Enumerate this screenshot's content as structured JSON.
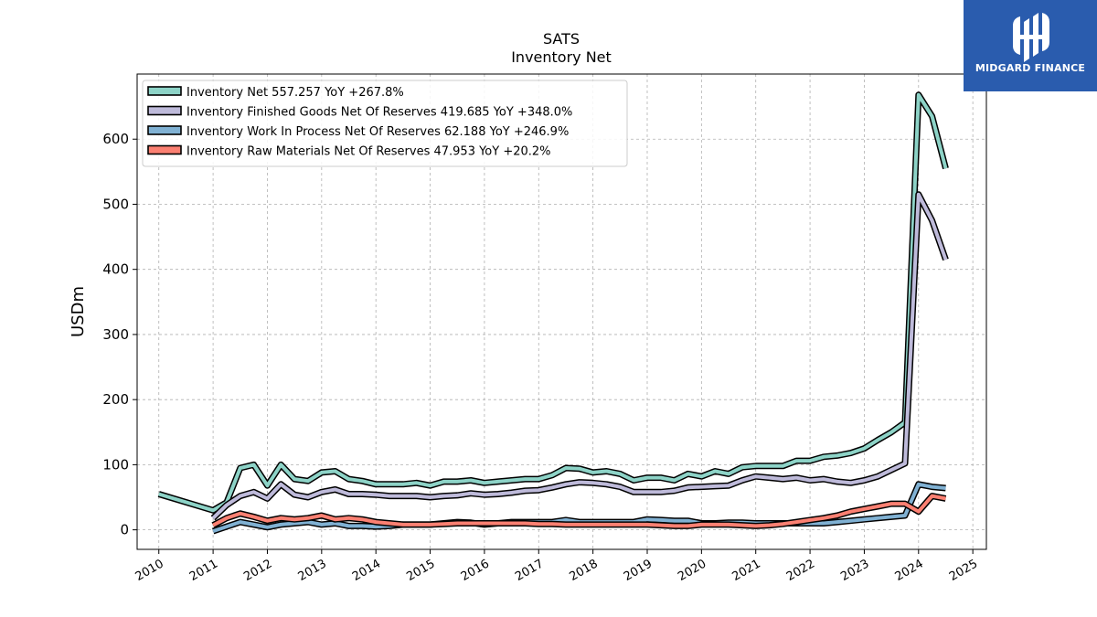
{
  "chart_data": {
    "type": "line",
    "title": "SATS",
    "subtitle": "Inventory Net",
    "xlabel": "",
    "ylabel": "USDm",
    "xlim": [
      2009.6,
      2025.25
    ],
    "ylim": [
      -30,
      700
    ],
    "yticks": [
      0,
      100,
      200,
      300,
      400,
      500,
      600
    ],
    "xticks": [
      2010,
      2011,
      2012,
      2013,
      2014,
      2015,
      2016,
      2017,
      2018,
      2019,
      2020,
      2021,
      2022,
      2023,
      2024,
      2025
    ],
    "grid": true,
    "legend_position": "top-left",
    "series": [
      {
        "name": "Inventory Net  557.257 YoY +267.8%",
        "color": "#8dd3c7",
        "x": [
          2010.0,
          2011.0,
          2011.25,
          2011.5,
          2011.75,
          2012.0,
          2012.25,
          2012.5,
          2012.75,
          2013.0,
          2013.25,
          2013.5,
          2013.75,
          2014.0,
          2014.25,
          2014.5,
          2014.75,
          2015.0,
          2015.25,
          2015.5,
          2015.75,
          2016.0,
          2016.25,
          2016.5,
          2016.75,
          2017.0,
          2017.25,
          2017.5,
          2017.75,
          2018.0,
          2018.25,
          2018.5,
          2018.75,
          2019.0,
          2019.25,
          2019.5,
          2019.75,
          2020.0,
          2020.25,
          2020.5,
          2020.75,
          2021.0,
          2021.25,
          2021.5,
          2021.75,
          2022.0,
          2022.25,
          2022.5,
          2022.75,
          2023.0,
          2023.25,
          2023.5,
          2023.75,
          2024.0,
          2024.25,
          2024.5
        ],
        "values": [
          55,
          30,
          42,
          95,
          100,
          68,
          100,
          78,
          75,
          88,
          90,
          78,
          75,
          70,
          70,
          70,
          72,
          68,
          74,
          74,
          76,
          72,
          74,
          76,
          78,
          78,
          84,
          95,
          94,
          88,
          90,
          86,
          76,
          80,
          80,
          76,
          86,
          82,
          90,
          86,
          96,
          98,
          98,
          98,
          106,
          106,
          112,
          114,
          118,
          125,
          138,
          150,
          165,
          668,
          635,
          555
        ]
      },
      {
        "name": "Inventory Finished Goods Net Of Reserves  419.685 YoY +348.0%",
        "color": "#bebada",
        "x": [
          2011.0,
          2011.25,
          2011.5,
          2011.75,
          2012.0,
          2012.25,
          2012.5,
          2012.75,
          2013.0,
          2013.25,
          2013.5,
          2013.75,
          2014.0,
          2014.25,
          2014.5,
          2014.75,
          2015.0,
          2015.25,
          2015.5,
          2015.75,
          2016.0,
          2016.25,
          2016.5,
          2016.75,
          2017.0,
          2017.25,
          2017.5,
          2017.75,
          2018.0,
          2018.25,
          2018.5,
          2018.75,
          2019.0,
          2019.25,
          2019.5,
          2019.75,
          2020.0,
          2020.25,
          2020.5,
          2020.75,
          2021.0,
          2021.25,
          2021.5,
          2021.75,
          2022.0,
          2022.25,
          2022.5,
          2022.75,
          2023.0,
          2023.25,
          2023.5,
          2023.75,
          2024.0,
          2024.25,
          2024.5
        ],
        "values": [
          18,
          38,
          52,
          58,
          48,
          70,
          54,
          50,
          58,
          62,
          55,
          55,
          54,
          52,
          52,
          52,
          50,
          52,
          53,
          56,
          54,
          55,
          57,
          60,
          61,
          65,
          70,
          73,
          72,
          70,
          66,
          58,
          58,
          58,
          60,
          65,
          66,
          67,
          68,
          76,
          82,
          80,
          78,
          80,
          76,
          78,
          74,
          72,
          76,
          82,
          92,
          102,
          515,
          475,
          415
        ]
      },
      {
        "name": "Inventory Work In Process Net Of Reserves  62.188 YoY +246.9%",
        "color": "#80b1d3",
        "x": [
          2011.0,
          2011.25,
          2011.5,
          2011.75,
          2012.0,
          2012.25,
          2012.5,
          2012.75,
          2013.0,
          2013.25,
          2013.5,
          2013.75,
          2014.0,
          2014.25,
          2014.5,
          2014.75,
          2015.0,
          2015.25,
          2015.5,
          2015.75,
          2016.0,
          2016.25,
          2016.5,
          2016.75,
          2017.0,
          2017.25,
          2017.5,
          2017.75,
          2018.0,
          2018.25,
          2018.5,
          2018.75,
          2019.0,
          2019.25,
          2019.5,
          2019.75,
          2020.0,
          2020.25,
          2020.5,
          2020.75,
          2021.0,
          2021.25,
          2021.5,
          2021.75,
          2022.0,
          2022.25,
          2022.5,
          2022.75,
          2023.0,
          2023.25,
          2023.5,
          2023.75,
          2024.0,
          2024.25,
          2024.5
        ],
        "values": [
          -2,
          5,
          12,
          8,
          4,
          8,
          10,
          12,
          8,
          10,
          6,
          6,
          5,
          6,
          8,
          8,
          8,
          10,
          12,
          11,
          8,
          10,
          12,
          12,
          12,
          12,
          15,
          12,
          12,
          12,
          12,
          12,
          16,
          15,
          14,
          14,
          10,
          10,
          11,
          11,
          10,
          10,
          10,
          10,
          10,
          10,
          12,
          14,
          16,
          18,
          20,
          22,
          70,
          66,
          64
        ]
      },
      {
        "name": "Inventory Raw Materials Net Of Reserves  47.953 YoY +20.2%",
        "color": "#fb8072",
        "x": [
          2011.0,
          2011.25,
          2011.5,
          2011.75,
          2012.0,
          2012.25,
          2012.5,
          2012.75,
          2013.0,
          2013.25,
          2013.5,
          2013.75,
          2014.0,
          2014.25,
          2014.5,
          2014.75,
          2015.0,
          2015.25,
          2015.5,
          2015.75,
          2016.0,
          2016.25,
          2016.5,
          2016.75,
          2017.0,
          2017.25,
          2017.5,
          2017.75,
          2018.0,
          2018.25,
          2018.5,
          2018.75,
          2019.0,
          2019.25,
          2019.5,
          2019.75,
          2020.0,
          2020.25,
          2020.5,
          2020.75,
          2021.0,
          2021.25,
          2021.5,
          2021.75,
          2022.0,
          2022.25,
          2022.5,
          2022.75,
          2023.0,
          2023.25,
          2023.5,
          2023.75,
          2024.0,
          2024.25,
          2024.5
        ],
        "values": [
          7,
          18,
          25,
          20,
          14,
          18,
          16,
          18,
          22,
          16,
          18,
          16,
          12,
          10,
          8,
          8,
          8,
          9,
          10,
          10,
          10,
          10,
          10,
          10,
          9,
          9,
          8,
          8,
          8,
          8,
          8,
          8,
          8,
          7,
          6,
          6,
          8,
          8,
          8,
          7,
          6,
          7,
          9,
          12,
          15,
          18,
          22,
          28,
          32,
          36,
          40,
          40,
          28,
          52,
          48
        ]
      }
    ]
  },
  "branding": {
    "logo_text": "MIDGARD FINANCE",
    "logo_bg": "#2a5cae",
    "logo_fg": "#ffffff"
  }
}
